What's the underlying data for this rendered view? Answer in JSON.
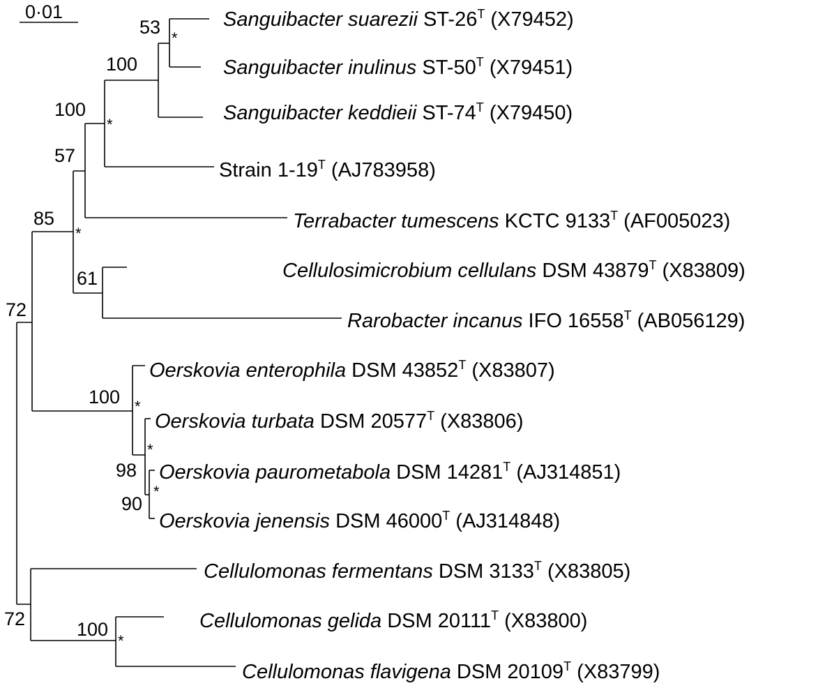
{
  "scale_bar": {
    "label": "0·01"
  },
  "taxa": [
    {
      "id": "t1",
      "genus_species": "Sanguibacter suarezii",
      "strain": "ST-26",
      "type_mark": "T",
      "accession": "(X79452)"
    },
    {
      "id": "t2",
      "genus_species": "Sanguibacter inulinus",
      "strain": "ST-50",
      "type_mark": "T",
      "accession": "(X79451)"
    },
    {
      "id": "t3",
      "genus_species": "Sanguibacter keddieii",
      "strain": "ST-74",
      "type_mark": "T",
      "accession": "(X79450)"
    },
    {
      "id": "t4",
      "genus_species": "",
      "strain": "Strain 1-19",
      "type_mark": "T",
      "accession": "(AJ783958)"
    },
    {
      "id": "t5",
      "genus_species": "Terrabacter tumescens",
      "strain": "KCTC 9133",
      "type_mark": "T",
      "accession": "(AF005023)"
    },
    {
      "id": "t6",
      "genus_species": "Cellulosimicrobium cellulans",
      "strain": "DSM 43879",
      "type_mark": "T",
      "accession": "(X83809)"
    },
    {
      "id": "t7",
      "genus_species": "Rarobacter incanus",
      "strain": "IFO 16558",
      "type_mark": "T",
      "accession": "(AB056129)"
    },
    {
      "id": "t8",
      "genus_species": "Oerskovia enterophila",
      "strain": "DSM 43852",
      "type_mark": "T",
      "accession": "(X83807)"
    },
    {
      "id": "t9",
      "genus_species": "Oerskovia turbata",
      "strain": "DSM 20577",
      "type_mark": "T",
      "accession": " (X83806)"
    },
    {
      "id": "t10",
      "genus_species": "Oerskovia paurometabola",
      "strain": "DSM 14281",
      "type_mark": "T",
      "accession": "(AJ314851)"
    },
    {
      "id": "t11",
      "genus_species": "Oerskovia jenensis",
      "strain": "DSM 46000",
      "type_mark": "T",
      "accession": "(AJ314848)"
    },
    {
      "id": "t12",
      "genus_species": "Cellulomonas fermentans",
      "strain": "DSM 3133",
      "type_mark": "T",
      "accession": "(X83805)"
    },
    {
      "id": "t13",
      "genus_species": "Cellulomonas gelida",
      "strain": "DSM 20111",
      "type_mark": "T",
      "accession": "(X83800)"
    },
    {
      "id": "t14",
      "genus_species": "Cellulomonas flavigena",
      "strain": "DSM 20109",
      "type_mark": "T",
      "accession": "(X83799)"
    }
  ],
  "bootstrap": {
    "b53": "53",
    "b100a": "100",
    "b100b": "100",
    "b57": "57",
    "b85": "85",
    "b61": "61",
    "b72a": "72",
    "b100c": "100",
    "b98": "98",
    "b90": "90",
    "b72b": "72",
    "b100d": "100"
  },
  "star_symbol": "*"
}
